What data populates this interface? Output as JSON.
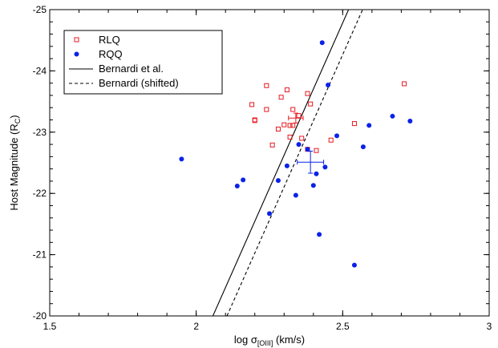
{
  "chart_data": {
    "type": "scatter",
    "xlabel": "log σ",
    "xlabel_sub": "[OIII]",
    "xlabel_unit": " (km/s)",
    "ylabel": "Host Magnitude (R",
    "ylabel_sub": "C",
    "ylabel_close": ")",
    "xlim": [
      1.5,
      3.0
    ],
    "ylim": [
      -20,
      -25
    ],
    "x_ticks": [
      1.5,
      2.0,
      2.5,
      3.0
    ],
    "x_tick_labels": [
      "1.5",
      "2",
      "2.5",
      "3"
    ],
    "y_ticks": [
      -20,
      -21,
      -22,
      -23,
      -24,
      -25
    ],
    "y_tick_labels": [
      "-20",
      "-21",
      "-22",
      "-23",
      "-24",
      "-25"
    ],
    "grid": false,
    "legend_position": "top-left",
    "series": [
      {
        "name": "RLQ",
        "marker": "open-square",
        "color": "#e8191f",
        "points": [
          [
            2.19,
            -23.45
          ],
          [
            2.2,
            -23.2
          ],
          [
            2.2,
            -23.19
          ],
          [
            2.24,
            -23.76
          ],
          [
            2.24,
            -23.37
          ],
          [
            2.26,
            -22.79
          ],
          [
            2.28,
            -23.05
          ],
          [
            2.29,
            -23.57
          ],
          [
            2.3,
            -23.12
          ],
          [
            2.31,
            -23.69
          ],
          [
            2.32,
            -23.11
          ],
          [
            2.32,
            -22.92
          ],
          [
            2.33,
            -23.37
          ],
          [
            2.33,
            -23.11
          ],
          [
            2.35,
            -23.27
          ],
          [
            2.36,
            -22.9
          ],
          [
            2.38,
            -23.63
          ],
          [
            2.38,
            -22.72
          ],
          [
            2.39,
            -23.46
          ],
          [
            2.41,
            -22.7
          ],
          [
            2.46,
            -22.87
          ],
          [
            2.54,
            -23.14
          ],
          [
            2.71,
            -23.79
          ]
        ]
      },
      {
        "name": "RQQ",
        "marker": "filled-circle",
        "color": "#0a22e8",
        "points": [
          [
            1.95,
            -22.56
          ],
          [
            2.14,
            -22.12
          ],
          [
            2.16,
            -22.22
          ],
          [
            2.25,
            -21.67
          ],
          [
            2.28,
            -22.21
          ],
          [
            2.31,
            -22.45
          ],
          [
            2.34,
            -21.97
          ],
          [
            2.35,
            -22.8
          ],
          [
            2.38,
            -22.72
          ],
          [
            2.4,
            -22.13
          ],
          [
            2.41,
            -22.32
          ],
          [
            2.42,
            -21.33
          ],
          [
            2.43,
            -24.46
          ],
          [
            2.44,
            -22.43
          ],
          [
            2.45,
            -23.77
          ],
          [
            2.48,
            -22.94
          ],
          [
            2.54,
            -20.83
          ],
          [
            2.57,
            -22.76
          ],
          [
            2.59,
            -23.11
          ],
          [
            2.67,
            -23.26
          ],
          [
            2.73,
            -23.18
          ]
        ]
      }
    ],
    "error_bars": [
      {
        "series": "RLQ",
        "x": 2.34,
        "y": -23.23,
        "xerr": 0.025,
        "yerr": 0.08,
        "color": "#e8191f"
      },
      {
        "series": "RQQ",
        "x": 2.39,
        "y": -22.51,
        "xerr": 0.045,
        "yerr": 0.18,
        "color": "#0a22e8"
      }
    ],
    "lines": [
      {
        "name": "Bernardi et al.",
        "style": "solid",
        "color": "#000000",
        "points": [
          [
            2.057,
            -20.0
          ],
          [
            2.52,
            -25.0
          ]
        ]
      },
      {
        "name": "Bernardi (shifted)",
        "style": "dashed",
        "color": "#000000",
        "points": [
          [
            2.105,
            -20.0
          ],
          [
            2.568,
            -25.0
          ]
        ]
      }
    ]
  }
}
